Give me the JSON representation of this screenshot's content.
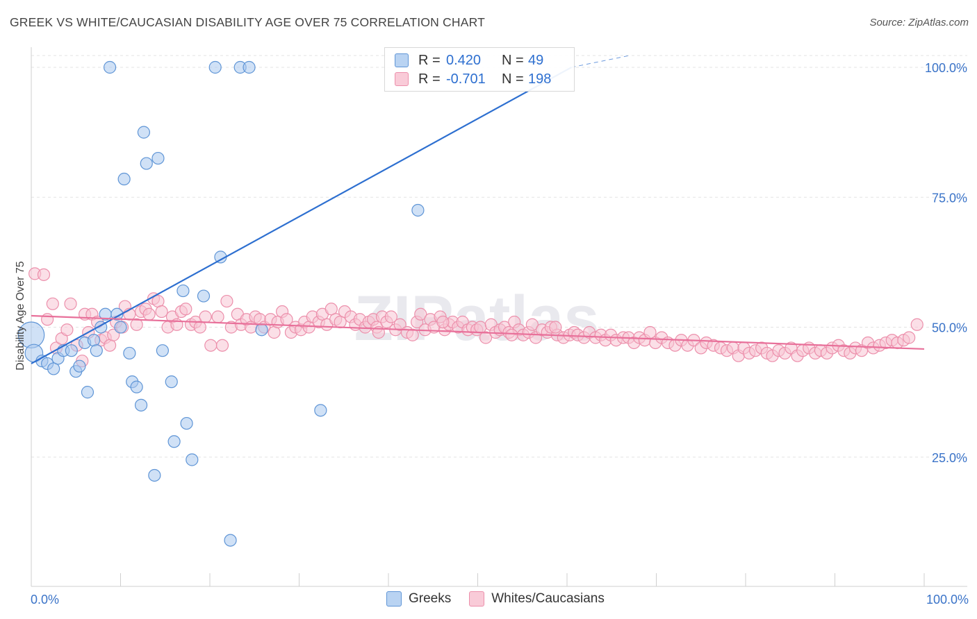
{
  "title": "GREEK VS WHITE/CAUCASIAN DISABILITY AGE OVER 75 CORRELATION CHART",
  "source": "Source: ZipAtlas.com",
  "watermark": "ZIPatlas",
  "legend": {
    "rows": [
      {
        "r_label": "R =",
        "r_value": "0.420",
        "n_label": "N =",
        "n_value": "49",
        "color": "#a9c8ee"
      },
      {
        "r_label": "R =",
        "r_value": "-0.701",
        "n_label": "N =",
        "n_value": "198",
        "color": "#f5b6c9"
      }
    ]
  },
  "bottom_legend": [
    {
      "label": "Greeks",
      "color": "#a9c8ee"
    },
    {
      "label": "Whites/Caucasians",
      "color": "#f5b6c9"
    }
  ],
  "chart_data": {
    "type": "scatter",
    "title": "GREEK VS WHITE/CAUCASIAN DISABILITY AGE OVER 75 CORRELATION CHART",
    "ylabel": "Disability Age Over 75",
    "xlabel": "",
    "xlim": [
      0,
      100
    ],
    "ylim": [
      0,
      100
    ],
    "x_tick_labels": [
      "0.0%",
      "100.0%"
    ],
    "y_tick_labels": [
      {
        "value": 100,
        "label": "100.0%"
      },
      {
        "value": 75,
        "label": "75.0%"
      },
      {
        "value": 50,
        "label": "50.0%"
      },
      {
        "value": 25,
        "label": "25.0%"
      }
    ],
    "grid": "horizontal dashed",
    "legend_position": "top-center",
    "colors": {
      "greeks_fill": "#a9c8ee",
      "greeks_stroke": "#5f95d6",
      "greeks_line": "#2d6fd0",
      "whites_fill": "#f7c4d3",
      "whites_stroke": "#ec8fab",
      "whites_line": "#e8709a",
      "axis_label": "#3a73c8"
    },
    "series": [
      {
        "name": "Greeks",
        "trend": {
          "x0": 0,
          "y0": 43,
          "x1": 60.5,
          "y1": 100,
          "dash_from_x": 60.5,
          "dash_to_x": 67,
          "dash_y_end": 100
        },
        "points": [
          [
            0,
            48.5,
            2.2
          ],
          [
            0.3,
            45,
            1.5
          ],
          [
            1.2,
            43.5,
            1
          ],
          [
            1.8,
            43,
            1
          ],
          [
            2.5,
            42,
            1
          ],
          [
            3,
            44,
            1
          ],
          [
            3.6,
            45.5,
            1
          ],
          [
            4.5,
            45.5,
            1
          ],
          [
            5,
            41.5,
            1
          ],
          [
            5.4,
            42.5,
            1
          ],
          [
            6,
            47,
            1
          ],
          [
            6.3,
            37.5,
            1
          ],
          [
            7,
            47.5,
            1
          ],
          [
            7.3,
            45.5,
            1
          ],
          [
            7.8,
            50,
            1
          ],
          [
            8.3,
            52.5,
            1
          ],
          [
            8.8,
            100,
            1
          ],
          [
            9.6,
            52.5,
            1
          ],
          [
            10,
            50,
            1
          ],
          [
            10.4,
            78.5,
            1
          ],
          [
            11,
            45,
            1
          ],
          [
            11.3,
            39.5,
            1
          ],
          [
            11.8,
            38.5,
            1
          ],
          [
            12.3,
            35,
            1
          ],
          [
            12.6,
            87.5,
            1
          ],
          [
            12.9,
            81.5,
            1
          ],
          [
            13.8,
            21.5,
            1
          ],
          [
            14.2,
            82.5,
            1
          ],
          [
            14.7,
            45.5,
            1
          ],
          [
            15.7,
            39.5,
            1
          ],
          [
            16,
            28,
            1
          ],
          [
            17,
            57,
            1
          ],
          [
            17.4,
            31.5,
            1
          ],
          [
            18,
            24.5,
            1
          ],
          [
            19.3,
            56,
            1
          ],
          [
            20.6,
            100,
            1
          ],
          [
            21.2,
            63.5,
            1
          ],
          [
            22.3,
            9,
            1
          ],
          [
            23.4,
            100,
            1
          ],
          [
            24.4,
            100,
            1
          ],
          [
            25.8,
            49.5,
            1
          ],
          [
            32.4,
            34,
            1
          ],
          [
            43.3,
            72.5,
            1
          ]
        ]
      },
      {
        "name": "Whites/Caucasians",
        "trend": {
          "x0": 0,
          "y0": 52.2,
          "x1": 100,
          "y1": 45.8
        },
        "points": [
          [
            0.4,
            60.3
          ],
          [
            1.4,
            60.1
          ],
          [
            1.8,
            51.5
          ],
          [
            2.4,
            54.5
          ],
          [
            2.8,
            46
          ],
          [
            3.4,
            47.8
          ],
          [
            4,
            49.5
          ],
          [
            4.4,
            54.5
          ],
          [
            5.1,
            46.5
          ],
          [
            5.7,
            43.5
          ],
          [
            6,
            52.5
          ],
          [
            6.4,
            49
          ],
          [
            6.8,
            52.5
          ],
          [
            7.4,
            51
          ],
          [
            7.8,
            47.5
          ],
          [
            8.3,
            48
          ],
          [
            8.8,
            46.5
          ],
          [
            9.2,
            48.5
          ],
          [
            9.5,
            51
          ],
          [
            10.2,
            50
          ],
          [
            10.5,
            54
          ],
          [
            11,
            52.5
          ],
          [
            11.8,
            50.5
          ],
          [
            12.3,
            53
          ],
          [
            12.8,
            53.5
          ],
          [
            13.2,
            52.5
          ],
          [
            13.7,
            55.5
          ],
          [
            14.2,
            55
          ],
          [
            14.6,
            53
          ],
          [
            15.3,
            50
          ],
          [
            15.8,
            52
          ],
          [
            16.3,
            50.5
          ],
          [
            16.8,
            53
          ],
          [
            17.3,
            53.5
          ],
          [
            17.9,
            50.5
          ],
          [
            18.4,
            51
          ],
          [
            18.9,
            50
          ],
          [
            19.5,
            52
          ],
          [
            20.1,
            46.5
          ],
          [
            20.9,
            52
          ],
          [
            21.4,
            46.5
          ],
          [
            21.9,
            55
          ],
          [
            22.4,
            50
          ],
          [
            23.1,
            52.5
          ],
          [
            23.5,
            50.5
          ],
          [
            24.1,
            51.5
          ],
          [
            24.6,
            50
          ],
          [
            25.1,
            52
          ],
          [
            25.6,
            51.5
          ],
          [
            26.1,
            50
          ],
          [
            26.8,
            51.5
          ],
          [
            27.2,
            49
          ],
          [
            27.6,
            51
          ],
          [
            28.1,
            53
          ],
          [
            28.6,
            51.5
          ],
          [
            29.1,
            49
          ],
          [
            29.6,
            50
          ],
          [
            30.2,
            49.5
          ],
          [
            30.6,
            51
          ],
          [
            31.1,
            50
          ],
          [
            31.5,
            52
          ],
          [
            32.2,
            51
          ],
          [
            32.6,
            52.5
          ],
          [
            33.1,
            50.5
          ],
          [
            33.6,
            53.5
          ],
          [
            34.1,
            51.5
          ],
          [
            34.6,
            51
          ],
          [
            35.1,
            53
          ],
          [
            35.8,
            52
          ],
          [
            36.3,
            50.5
          ],
          [
            36.8,
            51.5
          ],
          [
            37.4,
            50
          ],
          [
            37.8,
            51
          ],
          [
            38.3,
            51.5
          ],
          [
            38.7,
            50
          ],
          [
            39.3,
            52
          ],
          [
            39.8,
            51
          ],
          [
            40.3,
            52
          ],
          [
            40.8,
            49.5
          ],
          [
            41.3,
            50.5
          ],
          [
            42.1,
            49
          ],
          [
            42.7,
            48.5
          ],
          [
            43.2,
            51
          ],
          [
            43.6,
            52.5
          ],
          [
            44.1,
            49.5
          ],
          [
            44.7,
            51.5
          ],
          [
            45.1,
            50
          ],
          [
            45.8,
            52
          ],
          [
            46.3,
            49.5
          ],
          [
            46.8,
            50.5
          ],
          [
            47.2,
            51
          ],
          [
            47.8,
            50
          ],
          [
            48.3,
            51
          ],
          [
            48.9,
            49.5
          ],
          [
            49.4,
            50
          ],
          [
            49.9,
            49.5
          ],
          [
            50.3,
            50
          ],
          [
            50.9,
            48
          ],
          [
            51.5,
            50.5
          ],
          [
            52,
            49
          ],
          [
            52.5,
            49.5
          ],
          [
            53,
            50
          ],
          [
            53.5,
            49
          ],
          [
            54.1,
            51
          ],
          [
            54.6,
            49.5
          ],
          [
            55.1,
            48.5
          ],
          [
            55.7,
            49
          ],
          [
            56.1,
            50.5
          ],
          [
            56.5,
            48
          ],
          [
            57.2,
            49.5
          ],
          [
            57.8,
            49
          ],
          [
            58.2,
            50
          ],
          [
            58.9,
            48.5
          ],
          [
            59.6,
            48
          ],
          [
            60.3,
            48.5
          ],
          [
            60.8,
            49
          ],
          [
            61.2,
            48.5
          ],
          [
            61.9,
            48
          ],
          [
            62.5,
            49
          ],
          [
            63.2,
            48
          ],
          [
            63.8,
            48.5
          ],
          [
            64.3,
            47.5
          ],
          [
            64.9,
            48.5
          ],
          [
            65.5,
            47.5
          ],
          [
            66.3,
            48
          ],
          [
            66.9,
            48
          ],
          [
            67.5,
            47
          ],
          [
            68.1,
            48
          ],
          [
            68.7,
            47.5
          ],
          [
            69.3,
            49
          ],
          [
            69.9,
            47
          ],
          [
            70.6,
            48
          ],
          [
            71.3,
            47
          ],
          [
            72.1,
            46.5
          ],
          [
            72.8,
            47.5
          ],
          [
            73.5,
            46.5
          ],
          [
            74.2,
            47.5
          ],
          [
            75,
            46
          ],
          [
            75.6,
            47
          ],
          [
            76.4,
            46.5
          ],
          [
            77.2,
            46
          ],
          [
            77.9,
            45.5
          ],
          [
            78.6,
            46
          ],
          [
            79.2,
            44.5
          ],
          [
            79.8,
            46
          ],
          [
            80.4,
            45
          ],
          [
            81.1,
            45.5
          ],
          [
            81.8,
            46
          ],
          [
            82.4,
            45
          ],
          [
            83,
            44.5
          ],
          [
            83.7,
            45.5
          ],
          [
            84.4,
            45
          ],
          [
            85.1,
            46
          ],
          [
            85.8,
            44.5
          ],
          [
            86.4,
            45.5
          ],
          [
            87.1,
            46
          ],
          [
            87.8,
            45
          ],
          [
            88.4,
            45.5
          ],
          [
            89.1,
            45
          ],
          [
            89.7,
            46
          ],
          [
            90.4,
            46.5
          ],
          [
            91,
            45.5
          ],
          [
            91.7,
            45
          ],
          [
            92.3,
            46
          ],
          [
            93,
            45.5
          ],
          [
            93.7,
            47
          ],
          [
            94.3,
            46
          ],
          [
            95,
            46.5
          ],
          [
            95.7,
            47
          ],
          [
            96.4,
            47.5
          ],
          [
            97,
            47
          ],
          [
            97.7,
            47.5
          ],
          [
            98.3,
            48
          ],
          [
            99.2,
            50.5
          ],
          [
            53.8,
            48.5
          ],
          [
            58.7,
            50
          ],
          [
            46.1,
            51
          ],
          [
            38.9,
            49
          ]
        ]
      }
    ]
  }
}
